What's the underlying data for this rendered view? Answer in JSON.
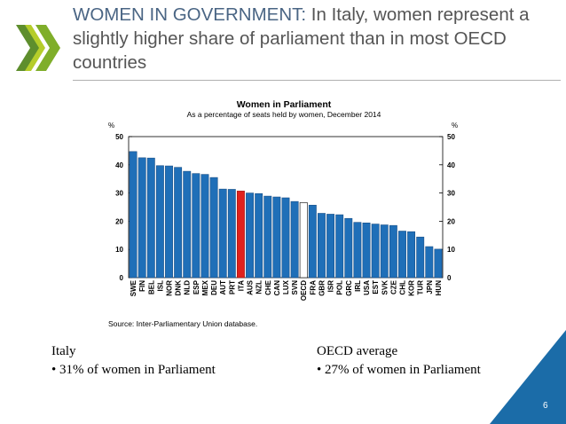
{
  "slide": {
    "title_prefix": "WOMEN IN GOVERNMENT:",
    "title_rest": " In Italy, women represent a slightly higher share of parliament than in most OECD countries",
    "page_number": "6"
  },
  "colors": {
    "bar": "#1f6fb8",
    "highlight": "#e0211d",
    "oecd": "#ffffff",
    "title_accent": "#4a6584",
    "corner": "#1b6ca8"
  },
  "chart_data": {
    "type": "bar",
    "title": "Women in Parliament",
    "subtitle": "As a percentage of seats held by women, December 2014",
    "ylabel_left": "%",
    "ylabel_right": "%",
    "ylim": [
      0,
      50
    ],
    "yticks": [
      0,
      10,
      20,
      30,
      40,
      50
    ],
    "grid": false,
    "categories": [
      "SWE",
      "FIN",
      "BEL",
      "ISL",
      "NOR",
      "DNK",
      "NLD",
      "ESP",
      "MEX",
      "DEU",
      "AUT",
      "PRT",
      "ITA",
      "AUS",
      "NZL",
      "CHE",
      "CAN",
      "LUX",
      "SVN",
      "OECD",
      "FRA",
      "GBR",
      "ISR",
      "POL",
      "GRC",
      "IRL",
      "USA",
      "EST",
      "SVK",
      "CZE",
      "CHL",
      "KOR",
      "TUR",
      "JPN",
      "HUN"
    ],
    "values": [
      44.7,
      42.5,
      42.4,
      39.7,
      39.6,
      39.1,
      37.7,
      36.9,
      36.6,
      35.5,
      31.4,
      31.3,
      30.7,
      30.0,
      29.8,
      28.9,
      28.6,
      28.3,
      27.0,
      26.6,
      25.7,
      22.8,
      22.5,
      22.3,
      21.0,
      19.6,
      19.4,
      19.0,
      18.7,
      18.5,
      16.5,
      16.3,
      14.4,
      11.0,
      10.1
    ],
    "highlight": "ITA",
    "average": "OECD",
    "source": "Source: Inter-Parliamentary Union database."
  },
  "summary": {
    "left_heading": "Italy",
    "left_bullet": "•  31% of women in Parliament",
    "right_heading": "OECD average",
    "right_bullet": "•  27% of women in Parliament"
  }
}
